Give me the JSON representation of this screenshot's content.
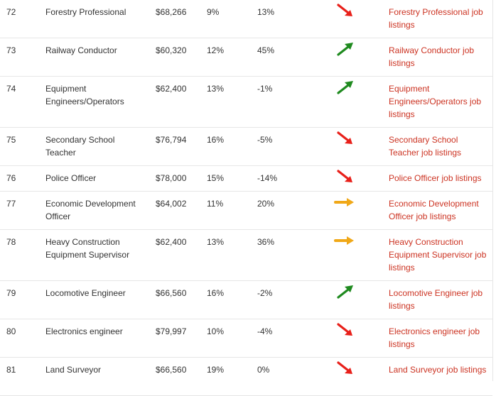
{
  "colors": {
    "link": "#cc3322",
    "trend_down": "#e8201a",
    "trend_up": "#1f8a1f",
    "trend_flat": "#f0a818"
  },
  "rows": [
    {
      "rank": "72",
      "job": "Forestry Professional",
      "salary": "$68,266",
      "unemployment": "9%",
      "growth": "13%",
      "trend": "down-arrow-icon",
      "link": "Forestry Professional job listings"
    },
    {
      "rank": "73",
      "job": "Railway Conductor",
      "salary": "$60,320",
      "unemployment": "12%",
      "growth": "45%",
      "trend": "up-arrow-icon",
      "link": "Railway Conductor job listings"
    },
    {
      "rank": "74",
      "job": "Equipment Engineers/Operators",
      "salary": "$62,400",
      "unemployment": "13%",
      "growth": "-1%",
      "trend": "up-arrow-icon",
      "link": "Equipment Engineers/Operators job listings"
    },
    {
      "rank": "75",
      "job": "Secondary School Teacher",
      "salary": "$76,794",
      "unemployment": "16%",
      "growth": "-5%",
      "trend": "down-arrow-icon",
      "link": "Secondary School Teacher job listings"
    },
    {
      "rank": "76",
      "job": "Police Officer",
      "salary": "$78,000",
      "unemployment": "15%",
      "growth": "-14%",
      "trend": "down-arrow-icon",
      "link": "Police Officer job listings"
    },
    {
      "rank": "77",
      "job": "Economic Development Officer",
      "salary": "$64,002",
      "unemployment": "11%",
      "growth": "20%",
      "trend": "right-arrow-icon",
      "link": "Economic Development Officer job listings"
    },
    {
      "rank": "78",
      "job": "Heavy Construction Equipment Supervisor",
      "salary": "$62,400",
      "unemployment": "13%",
      "growth": "36%",
      "trend": "right-arrow-icon",
      "link": "Heavy Construction Equipment Supervisor job listings"
    },
    {
      "rank": "79",
      "job": "Locomotive Engineer",
      "salary": "$66,560",
      "unemployment": "16%",
      "growth": "-2%",
      "trend": "up-arrow-icon",
      "link": "Locomotive Engineer job listings"
    },
    {
      "rank": "80",
      "job": "Electronics engineer",
      "salary": "$79,997",
      "unemployment": "10%",
      "growth": "-4%",
      "trend": "down-arrow-icon",
      "link": "Electronics engineer job listings"
    },
    {
      "rank": "81",
      "job": "Land Surveyor",
      "salary": "$66,560",
      "unemployment": "19%",
      "growth": "0%",
      "trend": "down-arrow-icon",
      "link": "Land Surveyor job listings"
    }
  ]
}
